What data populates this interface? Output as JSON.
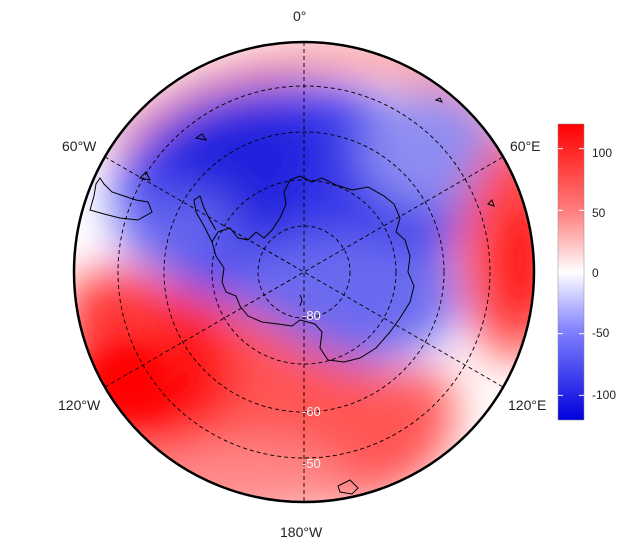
{
  "map": {
    "projection": "south-polar-stereographic",
    "longitude_labels": {
      "top": "0°",
      "upper_left": "60°W",
      "upper_right": "60°E",
      "lower_left": "120°W",
      "lower_right": "120°E",
      "bottom": "180°W"
    },
    "latitude_labels": [
      "-80",
      "-60",
      "-50"
    ],
    "outline_color": "#000000",
    "graticule_style": "dashed"
  },
  "colorbar": {
    "min": -120,
    "max": 120,
    "ticks": [
      "100",
      "50",
      "0",
      "-50",
      "-100"
    ],
    "colors": {
      "low": "#0000ff",
      "mid": "#ffffff",
      "high": "#ff0000"
    }
  }
}
